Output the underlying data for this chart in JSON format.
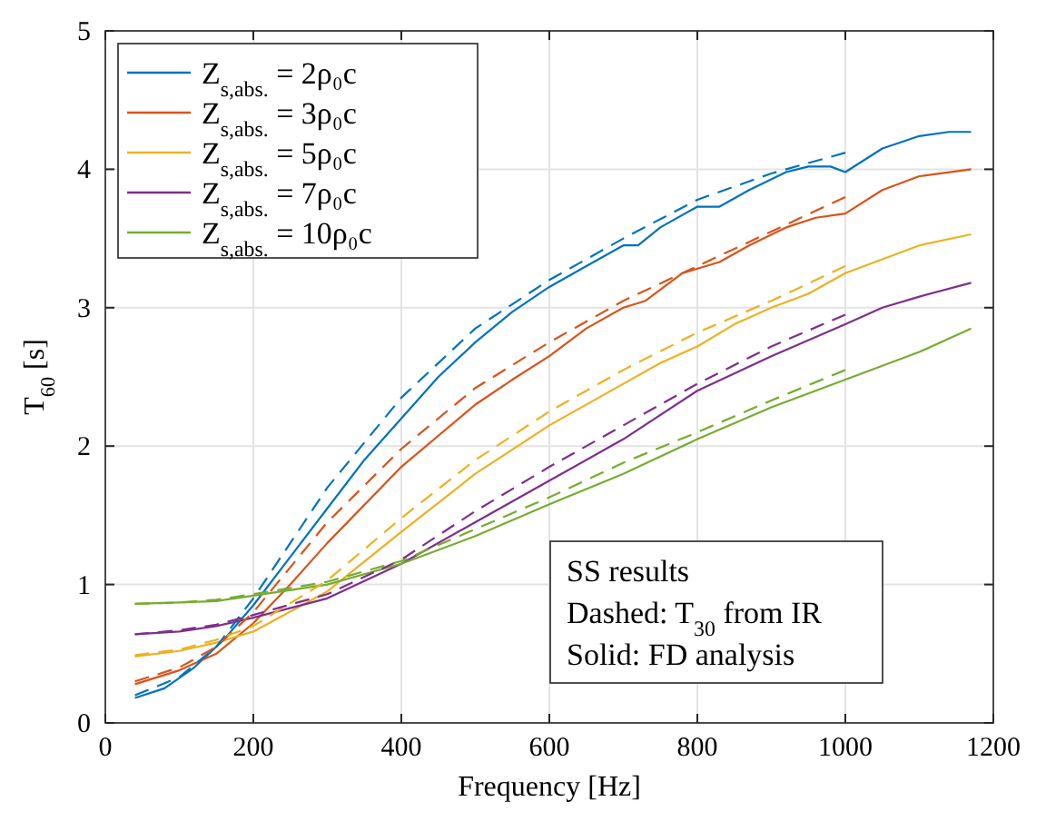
{
  "chart_data": {
    "type": "line",
    "xlabel": "Frequency [Hz]",
    "ylabel": "T$_{60}$ [s]",
    "xlim": [
      0,
      1200
    ],
    "xticks": [
      0,
      200,
      400,
      600,
      800,
      1000,
      1200
    ],
    "ylim": [
      0,
      5
    ],
    "yticks": [
      0,
      1,
      2,
      3,
      4,
      5
    ],
    "grid": true,
    "legend": "top left",
    "annotations": [
      "SS results",
      "Dashed: T$_{30}$ from IR",
      "Solid: FD analysis"
    ],
    "series": [
      {
        "name": "Z$_{s,abs.}$ = 2ρ₀c",
        "color": "#0072bd",
        "line_style": "solid",
        "x": [
          40,
          80,
          120,
          160,
          200,
          250,
          300,
          350,
          400,
          450,
          500,
          550,
          600,
          650,
          700,
          720,
          750,
          800,
          830,
          870,
          920,
          950,
          980,
          1000,
          1050,
          1100,
          1140,
          1170
        ],
        "values": [
          0.18,
          0.25,
          0.4,
          0.6,
          0.85,
          1.2,
          1.55,
          1.9,
          2.2,
          2.5,
          2.75,
          2.97,
          3.15,
          3.3,
          3.45,
          3.45,
          3.58,
          3.73,
          3.73,
          3.85,
          3.98,
          4.02,
          4.02,
          3.98,
          4.15,
          4.24,
          4.27,
          4.27
        ]
      },
      {
        "name": "Z$_{s,abs.}$ = 3ρ₀c",
        "color": "#d95319",
        "line_style": "solid",
        "x": [
          40,
          100,
          150,
          200,
          250,
          300,
          400,
          500,
          550,
          600,
          650,
          700,
          730,
          780,
          830,
          870,
          920,
          960,
          1000,
          1050,
          1100,
          1170
        ],
        "values": [
          0.28,
          0.38,
          0.5,
          0.72,
          1.0,
          1.3,
          1.85,
          2.3,
          2.48,
          2.65,
          2.85,
          3.0,
          3.05,
          3.25,
          3.33,
          3.45,
          3.58,
          3.65,
          3.68,
          3.85,
          3.95,
          4.0
        ]
      },
      {
        "name": "Z$_{s,abs.}$ = 5ρ₀c",
        "color": "#edb120",
        "line_style": "solid",
        "x": [
          40,
          100,
          150,
          200,
          300,
          400,
          500,
          600,
          700,
          750,
          800,
          850,
          900,
          950,
          1000,
          1050,
          1100,
          1170
        ],
        "values": [
          0.48,
          0.52,
          0.58,
          0.66,
          0.95,
          1.38,
          1.8,
          2.15,
          2.45,
          2.6,
          2.72,
          2.88,
          3.0,
          3.1,
          3.25,
          3.35,
          3.45,
          3.53
        ]
      },
      {
        "name": "Z$_{s,abs.}$ = 7ρ₀c",
        "color": "#7e2f8e",
        "line_style": "solid",
        "x": [
          40,
          100,
          150,
          200,
          300,
          400,
          500,
          600,
          700,
          800,
          900,
          1000,
          1050,
          1100,
          1170
        ],
        "values": [
          0.64,
          0.66,
          0.7,
          0.76,
          0.9,
          1.15,
          1.45,
          1.75,
          2.05,
          2.4,
          2.65,
          2.88,
          3.0,
          3.08,
          3.18
        ]
      },
      {
        "name": "Z$_{s,abs.}$ = 10ρ₀c",
        "color": "#77ac30",
        "line_style": "solid",
        "x": [
          40,
          100,
          150,
          200,
          300,
          400,
          500,
          600,
          700,
          800,
          900,
          1000,
          1100,
          1170
        ],
        "values": [
          0.86,
          0.87,
          0.88,
          0.92,
          1.0,
          1.15,
          1.35,
          1.58,
          1.8,
          2.05,
          2.28,
          2.48,
          2.68,
          2.85
        ]
      },
      {
        "color": "#0072bd",
        "line_style": "dashed",
        "x": [
          40,
          100,
          150,
          200,
          300,
          400,
          500,
          600,
          700,
          800,
          900,
          1000
        ],
        "values": [
          0.2,
          0.33,
          0.55,
          0.9,
          1.7,
          2.35,
          2.85,
          3.2,
          3.5,
          3.78,
          3.97,
          4.12
        ]
      },
      {
        "color": "#d95319",
        "line_style": "dashed",
        "x": [
          40,
          100,
          150,
          200,
          300,
          400,
          500,
          600,
          700,
          800,
          900,
          1000
        ],
        "values": [
          0.3,
          0.4,
          0.55,
          0.8,
          1.45,
          1.98,
          2.42,
          2.75,
          3.05,
          3.3,
          3.55,
          3.8
        ]
      },
      {
        "color": "#edb120",
        "line_style": "dashed",
        "x": [
          40,
          100,
          150,
          200,
          300,
          400,
          500,
          600,
          700,
          800,
          900,
          1000
        ],
        "values": [
          0.49,
          0.53,
          0.6,
          0.7,
          1.03,
          1.48,
          1.9,
          2.25,
          2.55,
          2.82,
          3.05,
          3.3
        ]
      },
      {
        "color": "#7e2f8e",
        "line_style": "dashed",
        "x": [
          40,
          100,
          150,
          200,
          300,
          400,
          500,
          600,
          700,
          800,
          900,
          1000
        ],
        "values": [
          0.64,
          0.67,
          0.71,
          0.78,
          0.93,
          1.18,
          1.53,
          1.85,
          2.15,
          2.45,
          2.72,
          2.95
        ]
      },
      {
        "color": "#77ac30",
        "line_style": "dashed",
        "x": [
          40,
          100,
          150,
          200,
          300,
          400,
          500,
          600,
          700,
          800,
          900,
          1000
        ],
        "values": [
          0.86,
          0.87,
          0.89,
          0.93,
          1.02,
          1.17,
          1.4,
          1.63,
          1.88,
          2.1,
          2.33,
          2.55
        ]
      }
    ]
  }
}
